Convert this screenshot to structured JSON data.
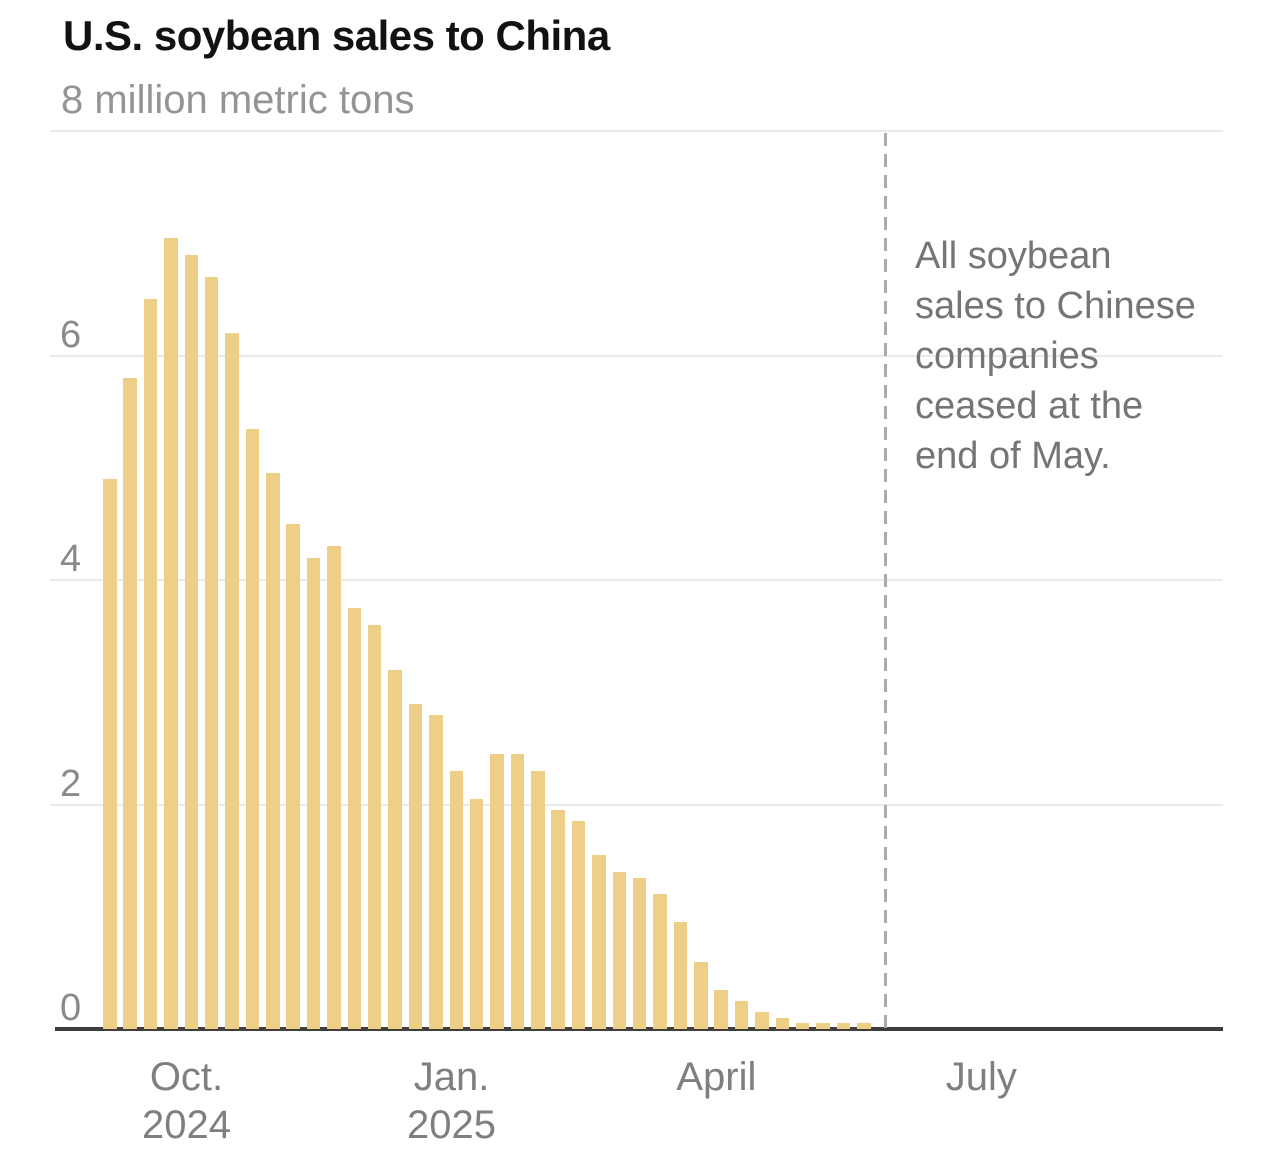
{
  "header": {
    "title": "U.S. soybean sales to China",
    "subtitle": "8 million metric tons"
  },
  "annotation": {
    "text": "All soybean\nsales to Chinese\ncompanies\nceased at the\nend of May."
  },
  "chart_data": {
    "type": "bar",
    "title": "U.S. soybean sales to China",
    "unit_label": "8 million metric tons",
    "ylim": [
      0,
      8
    ],
    "y_gridline_values": [
      8,
      6,
      4,
      2
    ],
    "y_label_values": [
      6,
      4,
      2,
      0
    ],
    "grid_on": true,
    "x_period": "weekly",
    "values": [
      4.9,
      5.8,
      6.5,
      7.05,
      6.9,
      6.7,
      6.2,
      5.35,
      4.95,
      4.5,
      4.2,
      4.3,
      3.75,
      3.6,
      3.2,
      2.9,
      2.8,
      2.3,
      2.05,
      2.45,
      2.45,
      2.3,
      1.95,
      1.85,
      1.55,
      1.4,
      1.35,
      1.2,
      0.95,
      0.6,
      0.35,
      0.25,
      0.15,
      0.1,
      0.05,
      0.05,
      0.05,
      0.05
    ],
    "x_ticks": [
      {
        "label": "Oct.\n2024",
        "bar_index": 4
      },
      {
        "label": "Jan.\n2025",
        "bar_index": 17
      },
      {
        "label": "April",
        "bar_index": 30
      },
      {
        "label": "July",
        "bar_index": 43
      }
    ],
    "cutoff_line": {
      "bar_index": 38.3,
      "style": "dashed"
    },
    "colors": {
      "bar": "#eecf87",
      "gridline": "#e9e9e9",
      "axis": "#3e3e3e",
      "cutoff": "#ababab"
    }
  }
}
